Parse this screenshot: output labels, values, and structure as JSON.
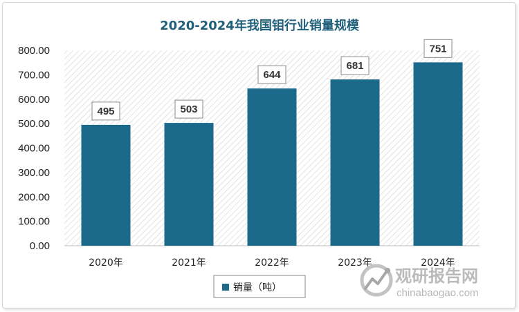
{
  "chart_data": {
    "type": "bar",
    "title": "2020-2024年我国钼行业销量规模",
    "categories": [
      "2020年",
      "2021年",
      "2022年",
      "2023年",
      "2024年"
    ],
    "series": [
      {
        "name": "销量（吨）",
        "values": [
          495,
          503,
          644,
          681,
          751
        ]
      }
    ],
    "data_labels": [
      "495",
      "503",
      "644",
      "681",
      "751"
    ],
    "ylim": [
      0,
      800
    ],
    "yticks": [
      "0.00",
      "100.00",
      "200.00",
      "300.00",
      "400.00",
      "500.00",
      "600.00",
      "700.00",
      "800.00"
    ],
    "xlabel": "",
    "ylabel": "",
    "legend_position": "bottom",
    "grid": false,
    "bar_color": "#1b6a8c"
  },
  "watermark": {
    "name": "观研报告网",
    "url": "chinabaogao.com"
  }
}
